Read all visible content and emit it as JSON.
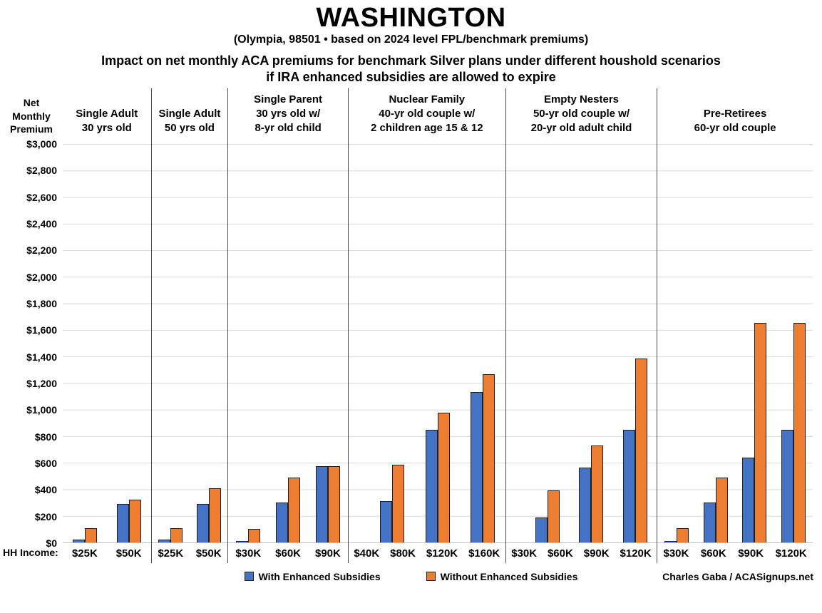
{
  "title": "WASHINGTON",
  "subtitle": "(Olympia, 98501 • based on 2024 level FPL/benchmark premiums)",
  "description_line1": "Impact on net monthly ACA premiums for benchmark Silver plans under different houshold scenarios",
  "description_line2": "if IRA enhanced subsidies are allowed to expire",
  "hh_income_label": "HH Income:",
  "credit": "Charles Gaba / ACASignups.net",
  "colors": {
    "with_enhanced": "#4472C4",
    "without_enhanced": "#ED7D31",
    "gridline": "#D9D9D9",
    "divider": "#4D4D4D",
    "text": "#000000"
  },
  "legend": {
    "items": [
      {
        "label": "With Enhanced Subsidies",
        "color_key": "with_enhanced"
      },
      {
        "label": "Without Enhanced Subsidies",
        "color_key": "without_enhanced"
      }
    ]
  },
  "chart_data": {
    "type": "bar",
    "title": "Impact on net monthly ACA premiums for benchmark Silver plans under different houshold scenarios if IRA enhanced subsidies are allowed to expire",
    "ylabel": "Net Monthly Premium",
    "ylabel_lines": [
      "Net",
      "Monthly",
      "Premium"
    ],
    "xlabel": "HH Income:",
    "ylim": [
      0,
      3000
    ],
    "ytick_step": 200,
    "ytick_labels": [
      "$0",
      "$200",
      "$400",
      "$600",
      "$800",
      "$1,000",
      "$1,200",
      "$1,400",
      "$1,600",
      "$1,800",
      "$2,000",
      "$2,200",
      "$2,400",
      "$2,600",
      "$2,800",
      "$3,000"
    ],
    "grid": true,
    "legend_position": "bottom",
    "series_names": [
      "With Enhanced Subsidies",
      "Without Enhanced Subsidies"
    ],
    "groups": [
      {
        "name_lines": [
          "Single Adult",
          "30 yrs old"
        ],
        "categories": [
          "$25K",
          "$50K"
        ],
        "with_enhanced": [
          20,
          290
        ],
        "without_enhanced": [
          105,
          320
        ]
      },
      {
        "name_lines": [
          "Single Adult",
          "50 yrs old"
        ],
        "categories": [
          "$25K",
          "$50K"
        ],
        "with_enhanced": [
          20,
          290
        ],
        "without_enhanced": [
          105,
          405
        ]
      },
      {
        "name_lines": [
          "Single Parent",
          "30 yrs old w/",
          "8-yr old child"
        ],
        "categories": [
          "$30K",
          "$60K",
          "$90K"
        ],
        "with_enhanced": [
          10,
          300,
          575
        ],
        "without_enhanced": [
          100,
          485,
          575
        ]
      },
      {
        "name_lines": [
          "Nuclear Family",
          "40-yr old couple w/",
          "2 children age 15 & 12"
        ],
        "categories": [
          "$40K",
          "$80K",
          "$120K",
          "$160K"
        ],
        "with_enhanced": [
          0,
          310,
          845,
          1130
        ],
        "without_enhanced": [
          0,
          585,
          975,
          1265
        ]
      },
      {
        "name_lines": [
          "Empty Nesters",
          "50-yr old couple w/",
          "20-yr old adult child"
        ],
        "categories": [
          "$30K",
          "$60K",
          "$90K",
          "$120K"
        ],
        "with_enhanced": [
          0,
          185,
          565,
          845
        ],
        "without_enhanced": [
          0,
          390,
          730,
          1380
        ]
      },
      {
        "name_lines": [
          "Pre-Retirees",
          "60-yr old couple"
        ],
        "categories": [
          "$30K",
          "$60K",
          "$90K",
          "$120K"
        ],
        "with_enhanced": [
          10,
          300,
          635,
          845
        ],
        "without_enhanced": [
          105,
          485,
          1650,
          1650
        ]
      }
    ]
  }
}
